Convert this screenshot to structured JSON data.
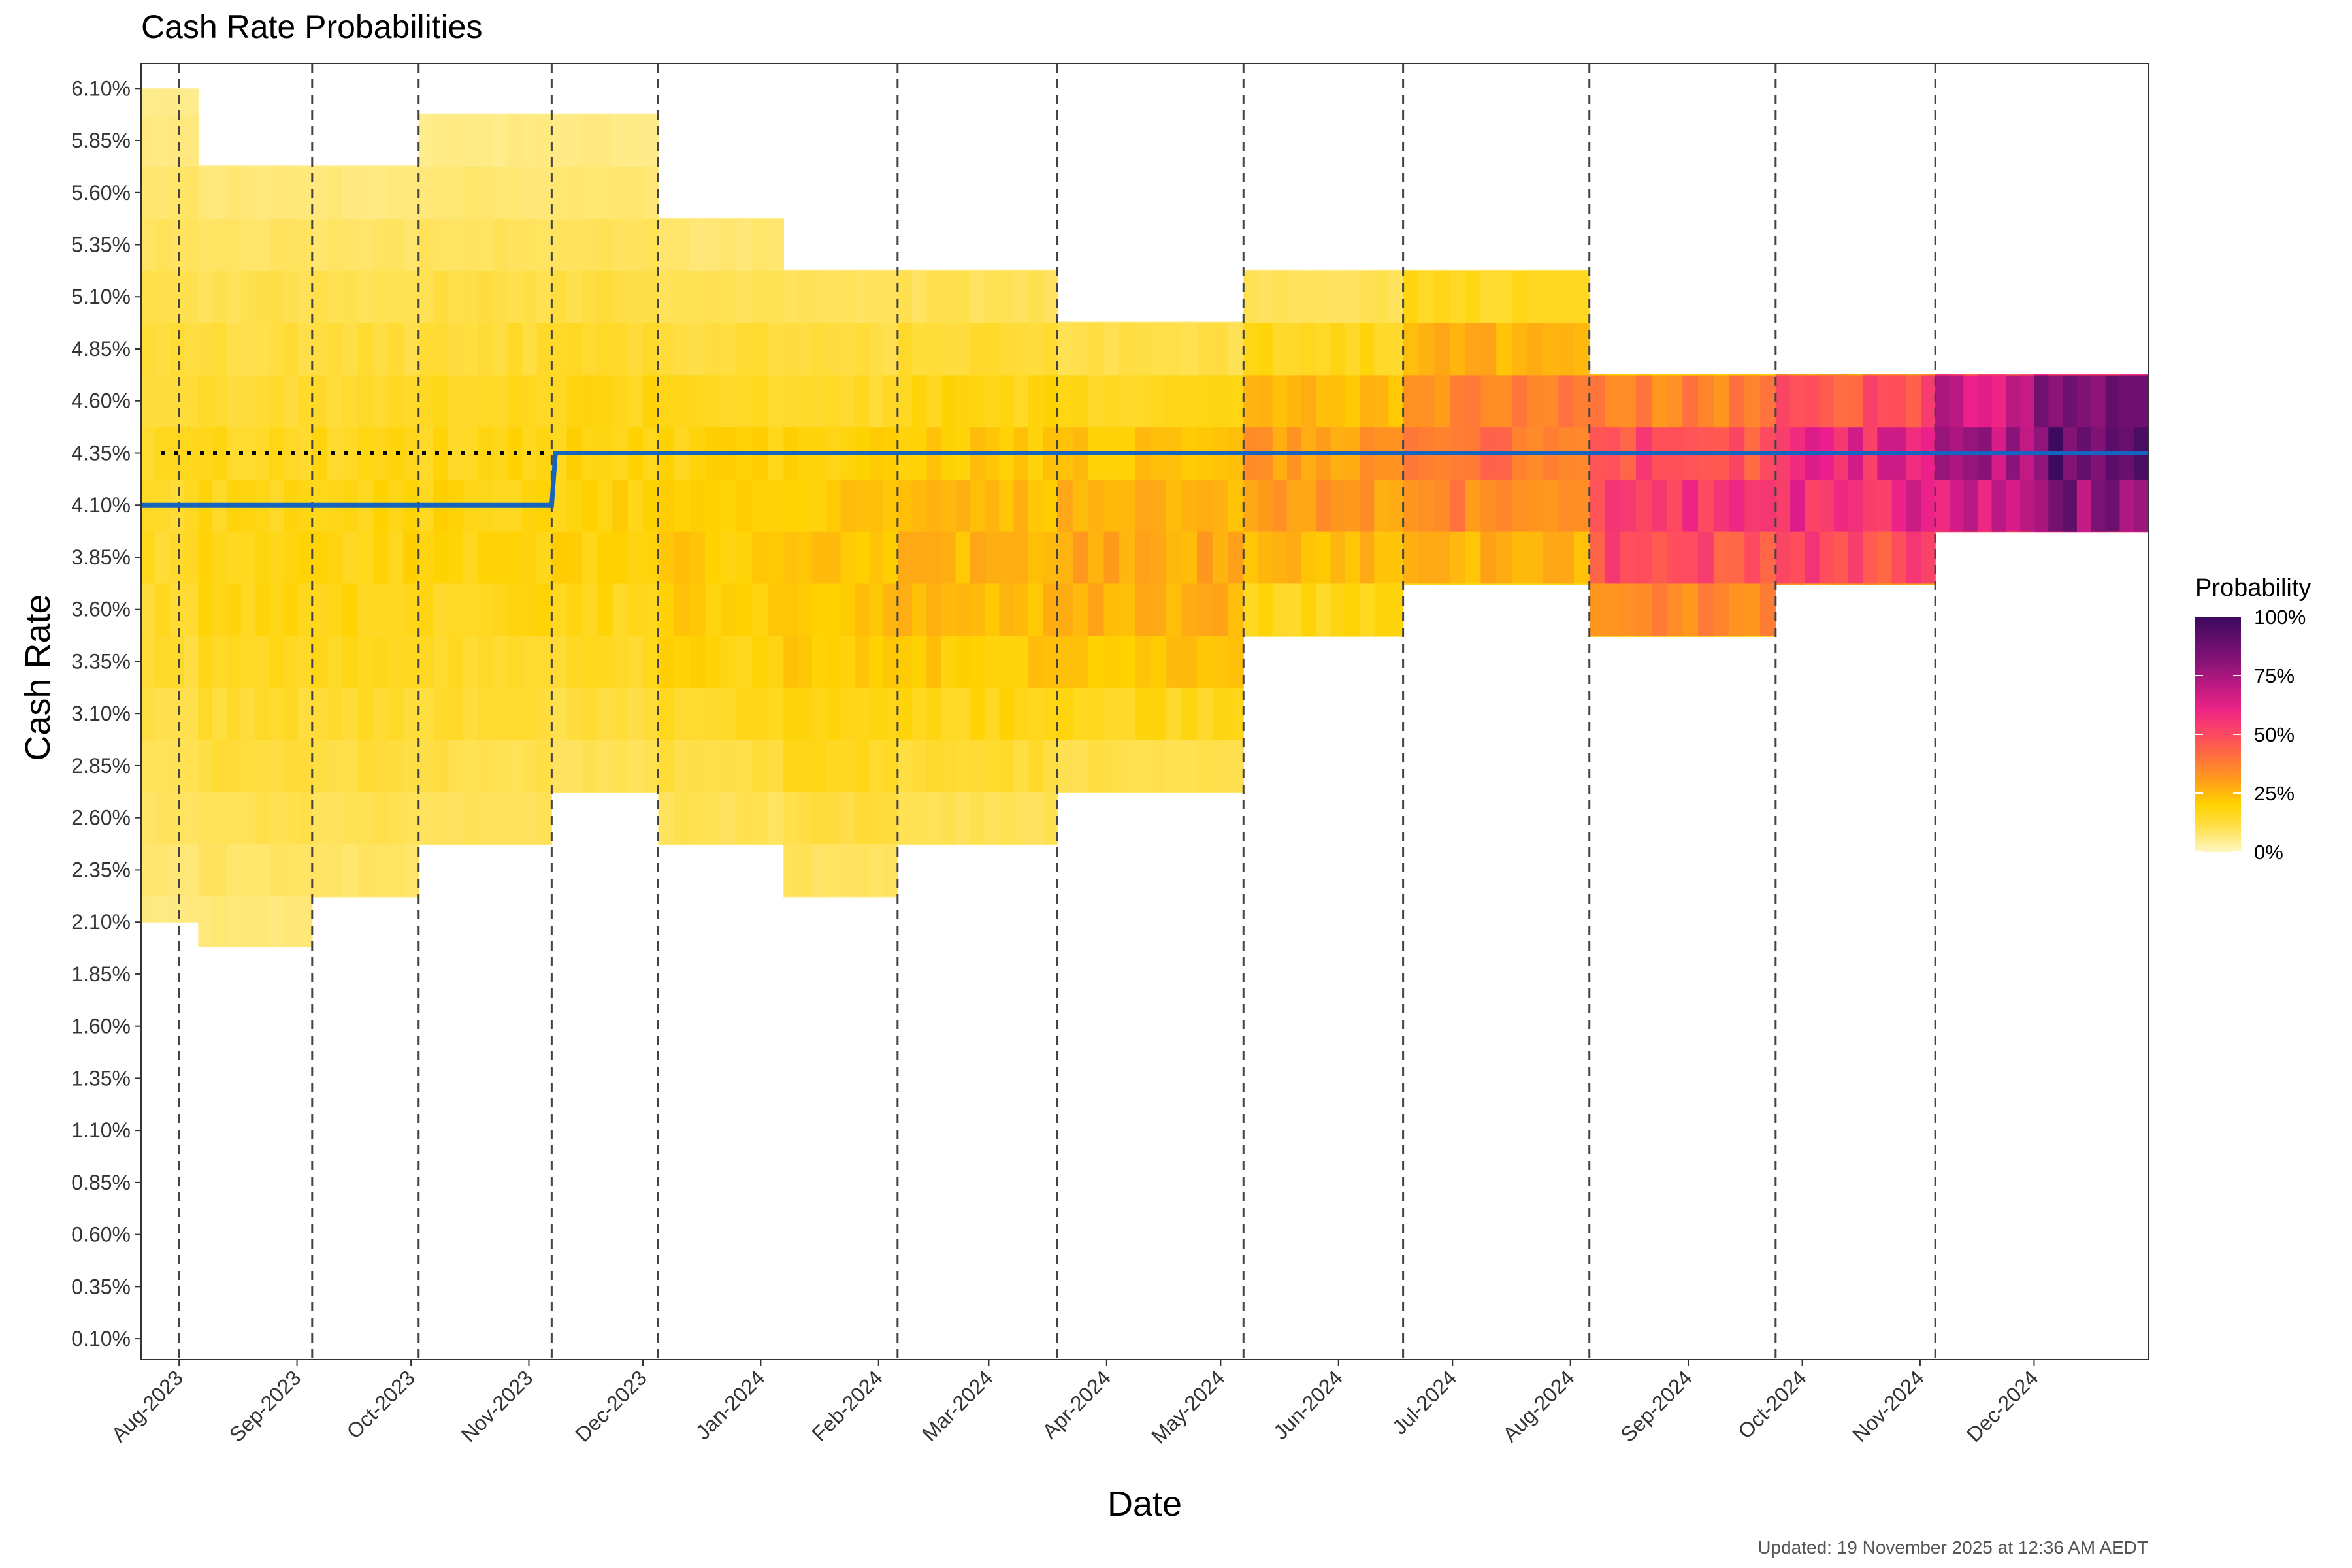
{
  "chart_data": {
    "type": "heatmap",
    "title": "Cash Rate Probabilities",
    "xlabel": "Date",
    "ylabel": "Cash Rate",
    "caption": "Updated: 19 November 2025 at 12:36 AM AEDT",
    "legend": {
      "title": "Probability",
      "position": "right",
      "ticks": [
        "0%",
        "25%",
        "50%",
        "75%",
        "100%"
      ],
      "colors": [
        "#fff7c4",
        "#ffd200",
        "#ff8c1a",
        "#ff3d7a",
        "#e8168c",
        "#8b0e7a",
        "#3d0a5c"
      ]
    },
    "x_range": [
      "2023-07-22",
      "2024-12-31"
    ],
    "x_ticks": [
      {
        "label": "Aug-2023",
        "date": "2023-08-01"
      },
      {
        "label": "Sep-2023",
        "date": "2023-09-01"
      },
      {
        "label": "Oct-2023",
        "date": "2023-10-01"
      },
      {
        "label": "Nov-2023",
        "date": "2023-11-01"
      },
      {
        "label": "Dec-2023",
        "date": "2023-12-01"
      },
      {
        "label": "Jan-2024",
        "date": "2024-01-01"
      },
      {
        "label": "Feb-2024",
        "date": "2024-02-01"
      },
      {
        "label": "Mar-2024",
        "date": "2024-03-01"
      },
      {
        "label": "Apr-2024",
        "date": "2024-04-01"
      },
      {
        "label": "May-2024",
        "date": "2024-05-01"
      },
      {
        "label": "Jun-2024",
        "date": "2024-06-01"
      },
      {
        "label": "Jul-2024",
        "date": "2024-07-01"
      },
      {
        "label": "Aug-2024",
        "date": "2024-08-01"
      },
      {
        "label": "Sep-2024",
        "date": "2024-09-01"
      },
      {
        "label": "Oct-2024",
        "date": "2024-10-01"
      },
      {
        "label": "Nov-2024",
        "date": "2024-11-01"
      },
      {
        "label": "Dec-2024",
        "date": "2024-12-01"
      }
    ],
    "y_ticks": [
      "0.10%",
      "0.35%",
      "0.60%",
      "0.85%",
      "1.10%",
      "1.35%",
      "1.60%",
      "1.85%",
      "2.10%",
      "2.35%",
      "2.60%",
      "2.85%",
      "3.10%",
      "3.35%",
      "3.60%",
      "3.85%",
      "4.10%",
      "4.35%",
      "4.60%",
      "4.85%",
      "5.10%",
      "5.35%",
      "5.60%",
      "5.85%",
      "6.10%"
    ],
    "y_range": [
      0.0,
      6.22
    ],
    "rba_meetings": [
      "2023-08-01",
      "2023-09-05",
      "2023-10-03",
      "2023-11-07",
      "2023-12-05",
      "2024-02-06",
      "2024-03-19",
      "2024-05-07",
      "2024-06-18",
      "2024-08-06",
      "2024-09-24",
      "2024-11-05"
    ],
    "current_rate": 4.35,
    "actual_rate": [
      {
        "date": "2023-07-22",
        "rate": 4.1
      },
      {
        "date": "2023-11-07",
        "rate": 4.1
      },
      {
        "date": "2023-11-08",
        "rate": 4.35
      },
      {
        "date": "2024-12-31",
        "rate": 4.35
      }
    ],
    "heat_columns": [
      {
        "start": "2023-07-22",
        "end": "2023-08-06",
        "lo": 2.1,
        "hi": 6.1,
        "peak": 4.0,
        "pmax": 0.14
      },
      {
        "start": "2023-08-06",
        "end": "2023-09-05",
        "lo": 1.98,
        "hi": 5.73,
        "peak": 3.85,
        "pmax": 0.16
      },
      {
        "start": "2023-09-05",
        "end": "2023-10-03",
        "lo": 2.22,
        "hi": 5.73,
        "peak": 3.85,
        "pmax": 0.17
      },
      {
        "start": "2023-10-03",
        "end": "2023-11-07",
        "lo": 2.47,
        "hi": 5.98,
        "peak": 4.0,
        "pmax": 0.17
      },
      {
        "start": "2023-11-07",
        "end": "2023-12-05",
        "lo": 2.72,
        "hi": 5.98,
        "peak": 4.1,
        "pmax": 0.18
      },
      {
        "start": "2023-12-05",
        "end": "2024-01-07",
        "lo": 2.47,
        "hi": 5.48,
        "peak": 3.85,
        "pmax": 0.2
      },
      {
        "start": "2024-01-07",
        "end": "2024-02-06",
        "lo": 2.22,
        "hi": 5.23,
        "peak": 3.72,
        "pmax": 0.22
      },
      {
        "start": "2024-02-06",
        "end": "2024-03-19",
        "lo": 2.47,
        "hi": 5.23,
        "peak": 3.85,
        "pmax": 0.24
      },
      {
        "start": "2024-03-19",
        "end": "2024-05-07",
        "lo": 2.72,
        "hi": 4.98,
        "peak": 3.85,
        "pmax": 0.27
      },
      {
        "start": "2024-05-07",
        "end": "2024-06-18",
        "lo": 3.47,
        "hi": 5.23,
        "peak": 4.22,
        "pmax": 0.3
      },
      {
        "start": "2024-06-18",
        "end": "2024-08-06",
        "lo": 3.72,
        "hi": 5.23,
        "peak": 4.35,
        "pmax": 0.38
      },
      {
        "start": "2024-08-06",
        "end": "2024-09-24",
        "lo": 3.47,
        "hi": 4.73,
        "peak": 4.1,
        "pmax": 0.52
      },
      {
        "start": "2024-09-24",
        "end": "2024-11-05",
        "lo": 3.72,
        "hi": 4.73,
        "peak": 4.22,
        "pmax": 0.6
      },
      {
        "start": "2024-11-05",
        "end": "2024-12-01",
        "lo": 3.97,
        "hi": 4.73,
        "peak": 4.35,
        "pmax": 0.72
      },
      {
        "start": "2024-12-01",
        "end": "2024-12-31",
        "lo": 3.97,
        "hi": 4.73,
        "peak": 4.35,
        "pmax": 0.88
      }
    ]
  }
}
